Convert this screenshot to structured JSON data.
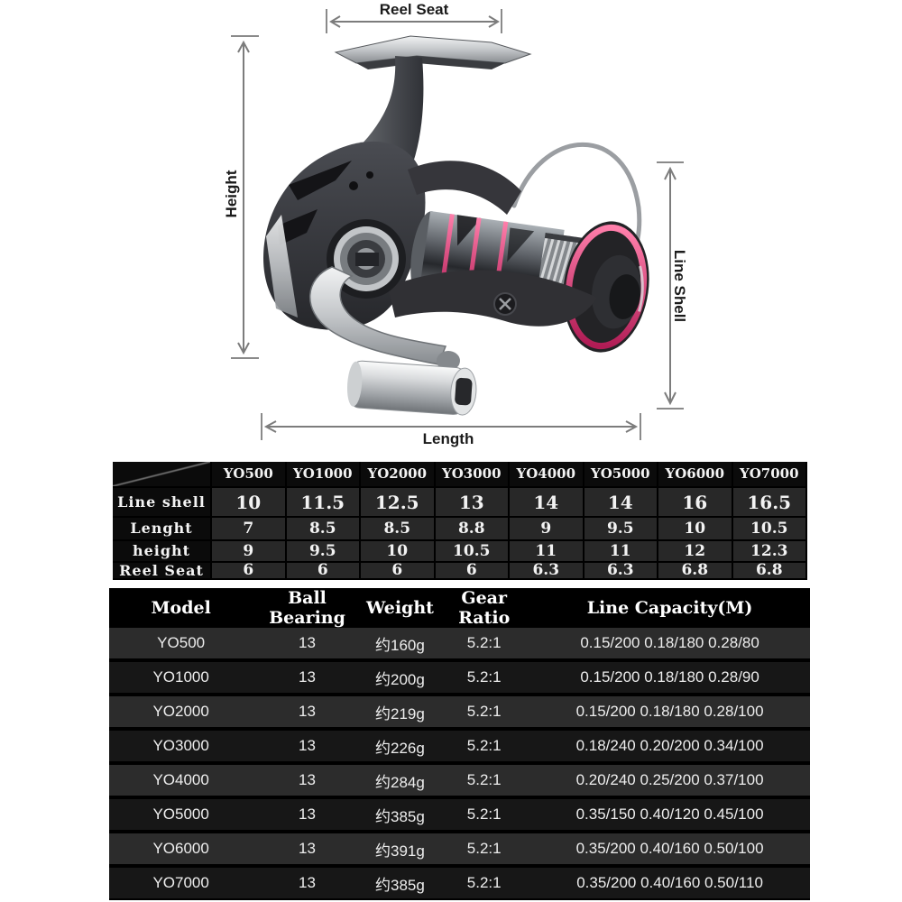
{
  "diagram": {
    "reel_seat_label": "Reel Seat",
    "height_label": "Height",
    "line_shell_label": "Line Shell",
    "length_label": "Length",
    "illustration": "spinning-fishing-reel"
  },
  "size_table": {
    "columns": [
      "YO500",
      "YO1000",
      "YO2000",
      "YO3000",
      "YO4000",
      "YO5000",
      "YO6000",
      "YO7000"
    ],
    "rows": [
      {
        "label": "Line shell",
        "values": [
          "10",
          "11.5",
          "12.5",
          "13",
          "14",
          "14",
          "16",
          "16.5"
        ]
      },
      {
        "label": "Lenght",
        "values": [
          "7",
          "8.5",
          "8.5",
          "8.8",
          "9",
          "9.5",
          "10",
          "10.5"
        ]
      },
      {
        "label": "height",
        "values": [
          "9",
          "9.5",
          "10",
          "10.5",
          "11",
          "11",
          "12",
          "12.3"
        ]
      },
      {
        "label": "Reel Seat",
        "values": [
          "6",
          "6",
          "6",
          "6",
          "6.3",
          "6.3",
          "6.8",
          "6.8"
        ]
      }
    ]
  },
  "spec_table": {
    "headers": [
      "Model",
      "Ball Bearing",
      "Weight",
      "Gear Ratio",
      "Line Capacity(M)"
    ],
    "rows": [
      [
        "YO500",
        "13",
        "约160g",
        "5.2:1",
        "0.15/200 0.18/180 0.28/80"
      ],
      [
        "YO1000",
        "13",
        "约200g",
        "5.2:1",
        "0.15/200 0.18/180 0.28/90"
      ],
      [
        "YO2000",
        "13",
        "约219g",
        "5.2:1",
        "0.15/200 0.18/180 0.28/100"
      ],
      [
        "YO3000",
        "13",
        "约226g",
        "5.2:1",
        "0.18/240 0.20/200 0.34/100"
      ],
      [
        "YO4000",
        "13",
        "约284g",
        "5.2:1",
        "0.20/240 0.25/200 0.37/100"
      ],
      [
        "YO5000",
        "13",
        "约385g",
        "5.2:1",
        "0.35/150 0.40/120 0.45/100"
      ],
      [
        "YO6000",
        "13",
        "约391g",
        "5.2:1",
        "0.35/200 0.40/160 0.50/100"
      ],
      [
        "YO7000",
        "13",
        "约385g",
        "5.2:1",
        "0.35/200 0.40/160 0.50/110"
      ]
    ]
  },
  "colors": {
    "accent_pink": "#d6336c",
    "table_background": "#000000",
    "size_cell_background": "#282828",
    "spec_row_light": "#2c2c2c",
    "spec_row_dark": "#171717",
    "photo_background": "#ffffff",
    "annotation_gray": "#7c7c7c"
  }
}
